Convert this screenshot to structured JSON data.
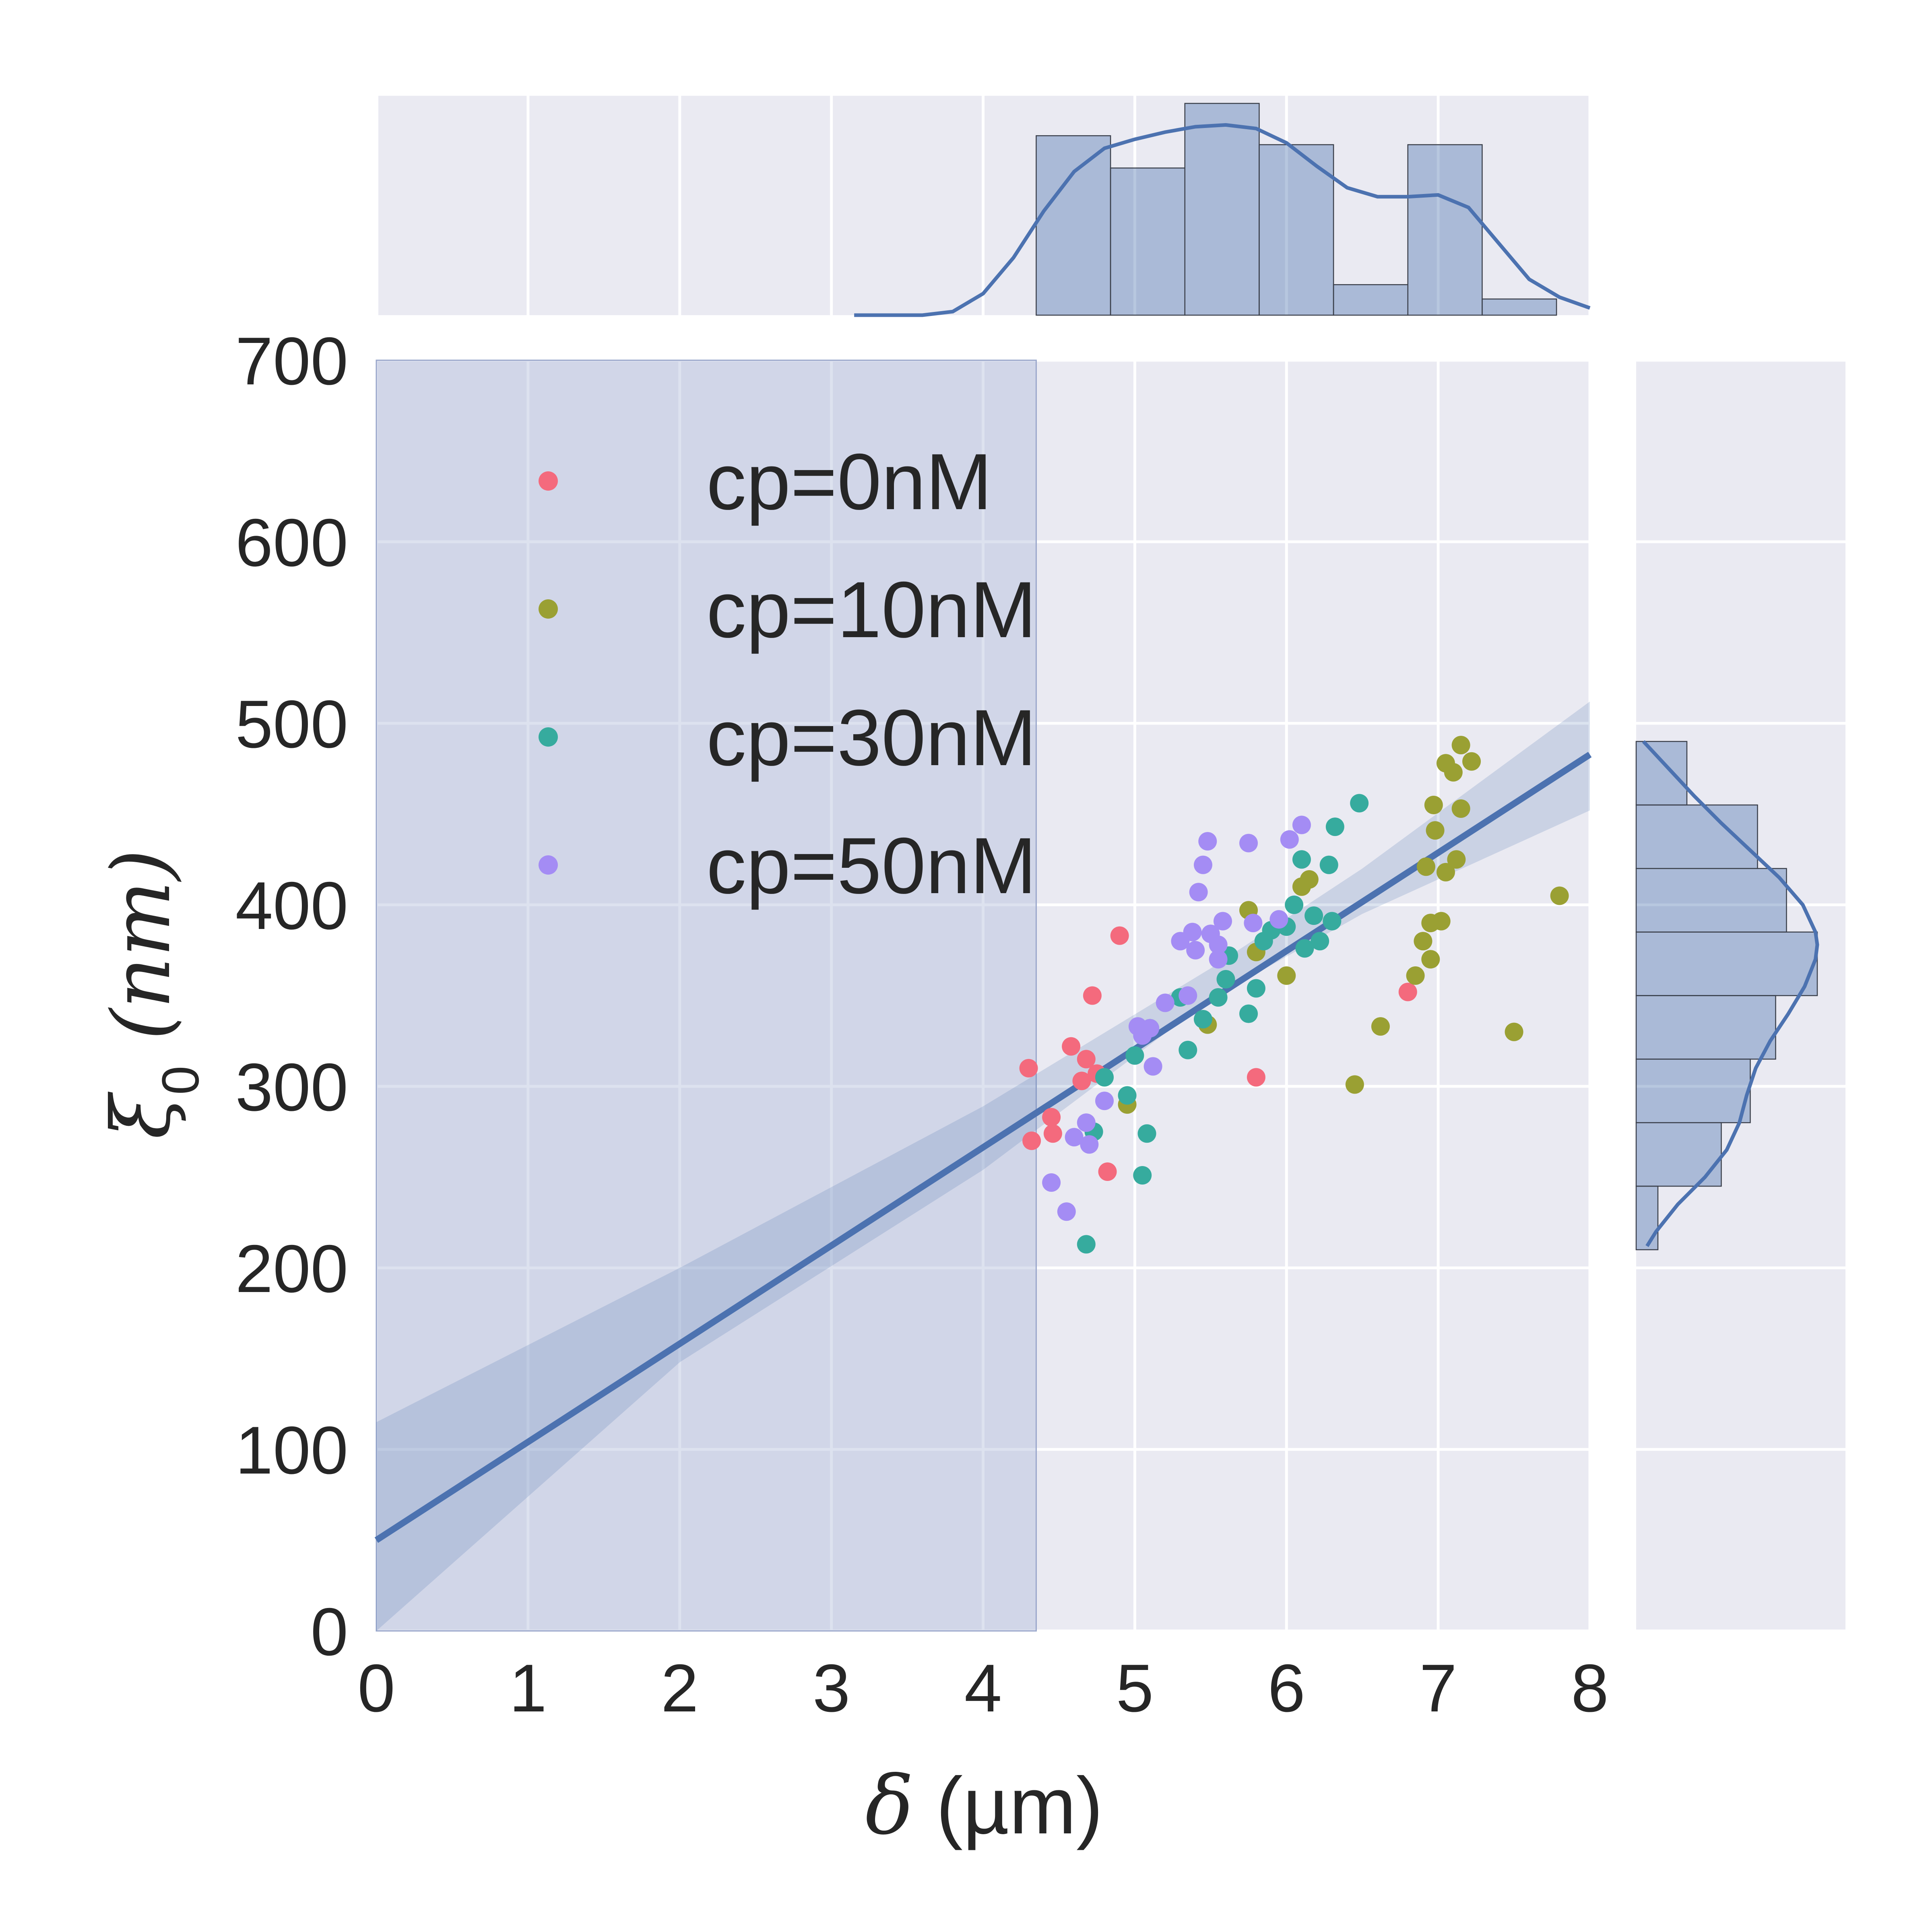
{
  "chart_data": {
    "type": "scatter",
    "xlabel": {
      "symbol": "δ",
      "unit": " (µm)"
    },
    "ylabel": {
      "symbol": "ξ",
      "subscript": "0",
      "unit": " (nm)"
    },
    "xlim": [
      0,
      8
    ],
    "ylim": [
      0,
      700
    ],
    "xticks": [
      "0",
      "1",
      "2",
      "3",
      "4",
      "5",
      "6",
      "7",
      "8"
    ],
    "yticks": [
      "0",
      "100",
      "200",
      "300",
      "400",
      "500",
      "600",
      "700"
    ],
    "grid": true,
    "legend_position": "upper-left",
    "shaded_region": {
      "x": [
        0,
        4.35
      ]
    },
    "regression": {
      "intercept": 50,
      "slope": 54.1,
      "ci": [
        {
          "x": 0,
          "lo": -15,
          "hi": 115
        },
        {
          "x": 2,
          "lo": 148,
          "hi": 200
        },
        {
          "x": 4,
          "lo": 254,
          "hi": 289
        },
        {
          "x": 5.5,
          "lo": 348,
          "hi": 365
        },
        {
          "x": 6.5,
          "lo": 395,
          "hi": 420
        },
        {
          "x": 8,
          "lo": 452,
          "hi": 512
        }
      ]
    },
    "series": [
      {
        "name": "cp=0nM",
        "color": "#f46a7d",
        "points": [
          [
            4.3,
            310
          ],
          [
            4.32,
            270
          ],
          [
            4.45,
            283
          ],
          [
            4.46,
            274
          ],
          [
            4.58,
            322
          ],
          [
            4.65,
            303
          ],
          [
            4.68,
            315
          ],
          [
            4.72,
            350
          ],
          [
            4.75,
            307
          ],
          [
            4.82,
            253
          ],
          [
            4.9,
            383
          ],
          [
            5.8,
            305
          ],
          [
            6.8,
            352
          ]
        ]
      },
      {
        "name": "cp=10nM",
        "color": "#9aa033",
        "points": [
          [
            4.95,
            290
          ],
          [
            5.48,
            334
          ],
          [
            5.75,
            397
          ],
          [
            5.8,
            374
          ],
          [
            6.0,
            361
          ],
          [
            6.1,
            410
          ],
          [
            6.15,
            414
          ],
          [
            6.45,
            301
          ],
          [
            6.62,
            333
          ],
          [
            6.85,
            361
          ],
          [
            6.9,
            380
          ],
          [
            6.92,
            421
          ],
          [
            6.95,
            370
          ],
          [
            6.95,
            390
          ],
          [
            6.98,
            441
          ],
          [
            7.02,
            391
          ],
          [
            7.05,
            418
          ],
          [
            7.05,
            478
          ],
          [
            7.1,
            473
          ],
          [
            7.12,
            425
          ],
          [
            7.15,
            453
          ],
          [
            7.15,
            488
          ],
          [
            7.22,
            479
          ],
          [
            7.5,
            330
          ],
          [
            7.8,
            405
          ],
          [
            6.97,
            455
          ]
        ]
      },
      {
        "name": "cp=30nM",
        "color": "#36ab9e",
        "points": [
          [
            4.68,
            213
          ],
          [
            4.73,
            275
          ],
          [
            4.8,
            305
          ],
          [
            4.95,
            295
          ],
          [
            5.0,
            317
          ],
          [
            5.05,
            251
          ],
          [
            5.08,
            274
          ],
          [
            5.1,
            332
          ],
          [
            5.3,
            349
          ],
          [
            5.35,
            320
          ],
          [
            5.45,
            337
          ],
          [
            5.55,
            349
          ],
          [
            5.6,
            359
          ],
          [
            5.75,
            340
          ],
          [
            5.8,
            354
          ],
          [
            5.85,
            380
          ],
          [
            5.9,
            386
          ],
          [
            6.0,
            388
          ],
          [
            6.05,
            400
          ],
          [
            6.1,
            425
          ],
          [
            6.12,
            376
          ],
          [
            6.18,
            394
          ],
          [
            6.22,
            380
          ],
          [
            6.28,
            422
          ],
          [
            6.3,
            391
          ],
          [
            6.32,
            443
          ],
          [
            6.48,
            456
          ],
          [
            5.62,
            372
          ]
        ]
      },
      {
        "name": "cp=50nM",
        "color": "#a48cf4",
        "points": [
          [
            4.45,
            247
          ],
          [
            4.55,
            231
          ],
          [
            4.6,
            272
          ],
          [
            4.68,
            280
          ],
          [
            4.7,
            268
          ],
          [
            4.8,
            292
          ],
          [
            5.05,
            328
          ],
          [
            5.1,
            332
          ],
          [
            5.12,
            311
          ],
          [
            5.2,
            346
          ],
          [
            5.3,
            380
          ],
          [
            5.35,
            350
          ],
          [
            5.38,
            385
          ],
          [
            5.4,
            375
          ],
          [
            5.42,
            407
          ],
          [
            5.45,
            422
          ],
          [
            5.48,
            435
          ],
          [
            5.5,
            384
          ],
          [
            5.55,
            370
          ],
          [
            5.55,
            378
          ],
          [
            5.58,
            391
          ],
          [
            5.75,
            434
          ],
          [
            5.78,
            390
          ],
          [
            5.95,
            392
          ],
          [
            6.02,
            436
          ],
          [
            6.1,
            444
          ],
          [
            5.02,
            333
          ]
        ]
      }
    ],
    "marginal_x": {
      "bins": [
        {
          "start": 4.35,
          "end": 4.84,
          "height": 1.0
        },
        {
          "start": 4.84,
          "end": 5.33,
          "height": 0.82
        },
        {
          "start": 5.33,
          "end": 5.82,
          "height": 1.18
        },
        {
          "start": 5.82,
          "end": 6.31,
          "height": 0.95
        },
        {
          "start": 6.31,
          "end": 6.8,
          "height": 0.17
        },
        {
          "start": 6.8,
          "end": 7.29,
          "height": 0.95
        },
        {
          "start": 7.29,
          "end": 7.78,
          "height": 0.09
        }
      ],
      "kde": [
        [
          3.15,
          0.0
        ],
        [
          3.6,
          0.0
        ],
        [
          3.8,
          0.02
        ],
        [
          4.0,
          0.12
        ],
        [
          4.2,
          0.32
        ],
        [
          4.4,
          0.58
        ],
        [
          4.6,
          0.8
        ],
        [
          4.8,
          0.93
        ],
        [
          5.0,
          0.98
        ],
        [
          5.2,
          1.02
        ],
        [
          5.4,
          1.05
        ],
        [
          5.6,
          1.06
        ],
        [
          5.8,
          1.04
        ],
        [
          6.0,
          0.96
        ],
        [
          6.2,
          0.83
        ],
        [
          6.4,
          0.71
        ],
        [
          6.6,
          0.66
        ],
        [
          6.8,
          0.66
        ],
        [
          7.0,
          0.67
        ],
        [
          7.2,
          0.6
        ],
        [
          7.4,
          0.4
        ],
        [
          7.6,
          0.2
        ],
        [
          7.8,
          0.1
        ],
        [
          8.0,
          0.04
        ]
      ]
    },
    "marginal_y": {
      "bins": [
        {
          "start": 210,
          "end": 245,
          "height": 0.12
        },
        {
          "start": 245,
          "end": 280,
          "height": 0.47
        },
        {
          "start": 280,
          "end": 315,
          "height": 0.63
        },
        {
          "start": 315,
          "end": 350,
          "height": 0.77
        },
        {
          "start": 350,
          "end": 385,
          "height": 1.0
        },
        {
          "start": 385,
          "end": 420,
          "height": 0.83
        },
        {
          "start": 420,
          "end": 455,
          "height": 0.67
        },
        {
          "start": 455,
          "end": 490,
          "height": 0.28
        }
      ],
      "kde": [
        [
          212,
          0.06
        ],
        [
          220,
          0.11
        ],
        [
          235,
          0.23
        ],
        [
          250,
          0.38
        ],
        [
          265,
          0.5
        ],
        [
          280,
          0.57
        ],
        [
          295,
          0.61
        ],
        [
          310,
          0.66
        ],
        [
          325,
          0.74
        ],
        [
          340,
          0.84
        ],
        [
          355,
          0.93
        ],
        [
          370,
          0.99
        ],
        [
          378,
          1.0
        ],
        [
          385,
          0.99
        ],
        [
          400,
          0.92
        ],
        [
          415,
          0.79
        ],
        [
          430,
          0.63
        ],
        [
          445,
          0.47
        ],
        [
          460,
          0.32
        ],
        [
          475,
          0.18
        ],
        [
          490,
          0.04
        ]
      ]
    }
  }
}
